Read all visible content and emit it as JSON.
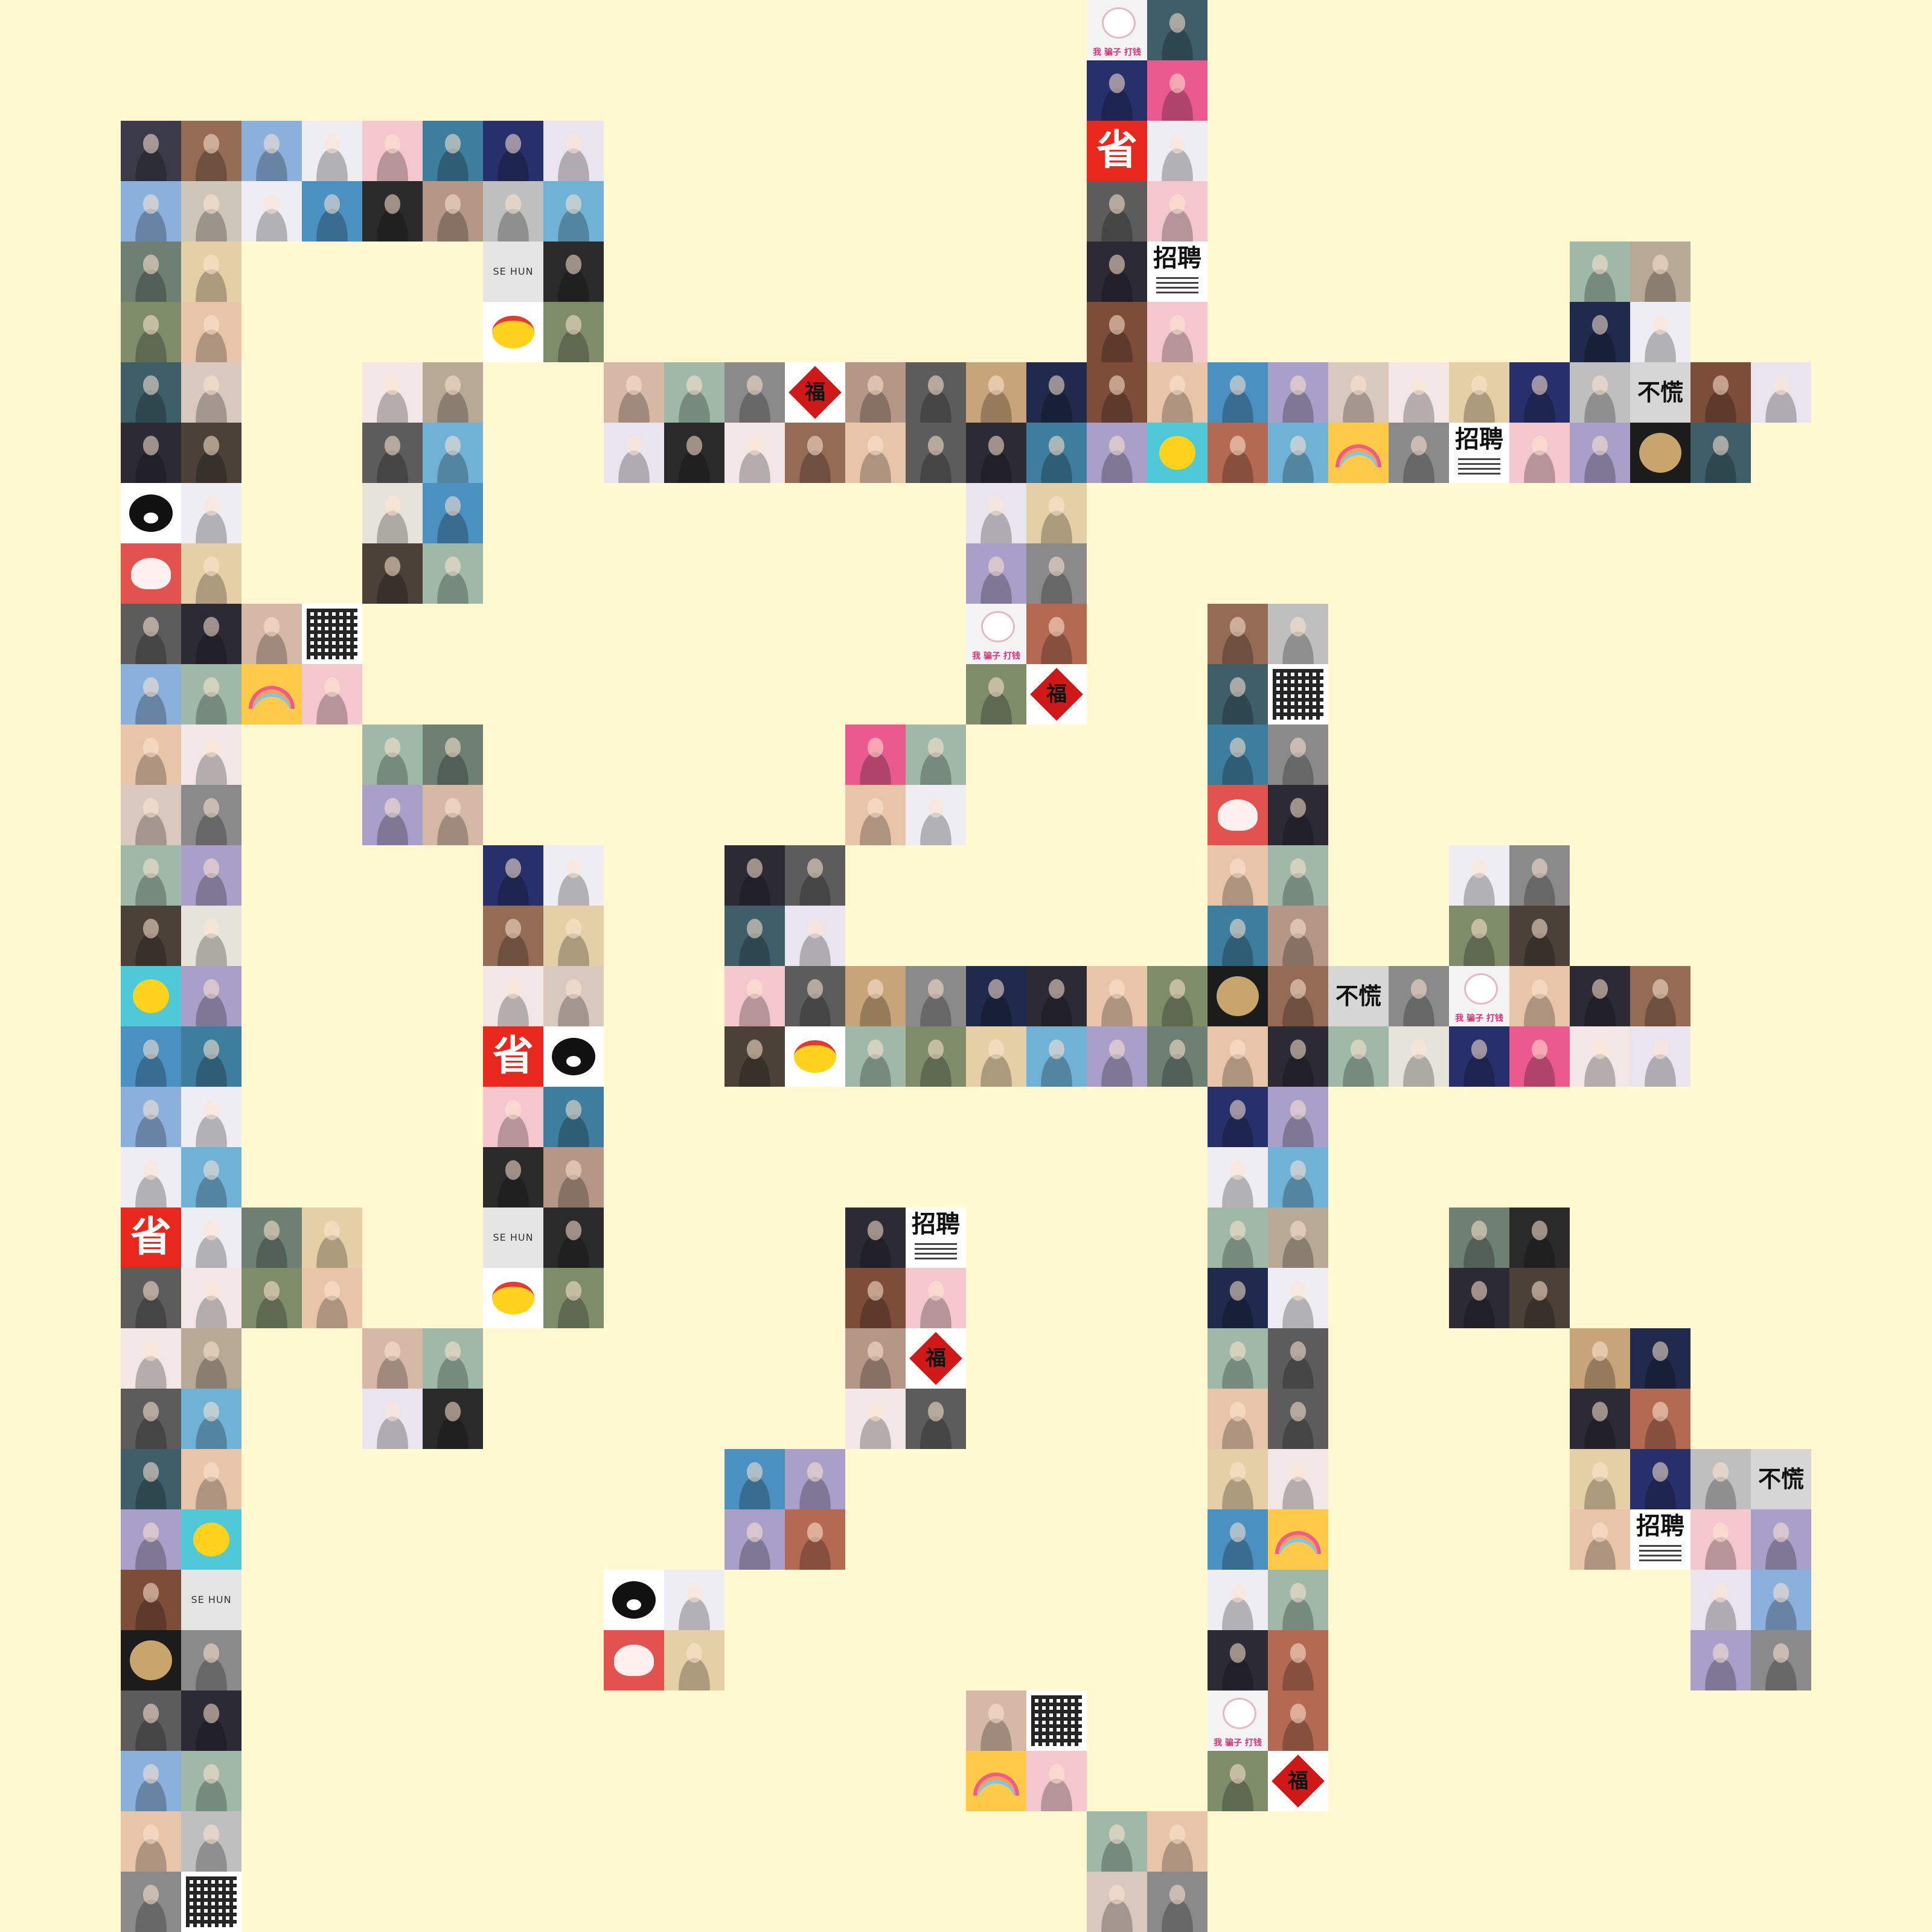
{
  "canvas": {
    "background": "#FFF8D0"
  },
  "palette": {
    "1": "#3A3A48",
    "2": "#A87A56",
    "3": "#8BB0DC",
    "4": "#BFBFBF",
    "5": "#F4C6CE",
    "6": "#3D7E9E",
    "7": "#27306A",
    "8": "#D8C8BE",
    "9": "#EDEDF3",
    "10": "#B8A896",
    "11": "#2A2A2A",
    "12": "#4A90C0",
    "13": "#5C5C5C",
    "14": "#6E7F74",
    "15": "#E4CFA6",
    "16": "#3E5F6A",
    "17": "#CFC6BA",
    "18": "#E9E4EE",
    "19": "#7C4E3A",
    "20": "#202A4C",
    "21": "#B49786",
    "22": "#8A8A8A",
    "23": "#E6E3DA",
    "24": "#2C2B35",
    "25": "#946B54",
    "26": "#9FB8A8",
    "27": "#F2E6E6",
    "28": "#C8A47A",
    "29": "#EB5A8E",
    "30": "#A8A0C8",
    "31": "#4B4138",
    "32": "#D6B8A6",
    "33": "#6FB2D6",
    "34": "#B46A52",
    "35": "#7E8C6A",
    "36": "#E8C4A8"
  },
  "special_tiles": {
    "sheng": {
      "text": "省",
      "color": "#E8281C"
    },
    "buliao": {
      "text": "不慌"
    },
    "zhaopin": {
      "text": "招聘"
    },
    "sehun": {
      "text": "SE  HUN"
    },
    "fu": {
      "text": "福"
    },
    "pianzi": {
      "text": "我 骗子 打钱"
    },
    "qr": {
      "icon": "qr-code-icon"
    },
    "rainbow": {
      "icon": "rainbow-icon"
    },
    "kuma": {
      "icon": "kumamon-icon"
    },
    "duck": {
      "icon": "duck-icon"
    },
    "mochi": {
      "icon": "mochi-icon"
    },
    "pug": {
      "icon": "pug-icon"
    },
    "blob": {
      "icon": "yellow-blob-icon"
    }
  },
  "mosaic": {
    "columns": 32,
    "rows": 32,
    "tiles": [
      [
        0,
        18,
        "pianzi"
      ],
      [
        0,
        19,
        "16"
      ],
      [
        1,
        18,
        "7"
      ],
      [
        1,
        19,
        "29"
      ],
      [
        2,
        2,
        "1"
      ],
      [
        2,
        3,
        "25"
      ],
      [
        2,
        4,
        "3"
      ],
      [
        2,
        5,
        "9"
      ],
      [
        2,
        6,
        "5"
      ],
      [
        2,
        7,
        "6"
      ],
      [
        2,
        8,
        "7"
      ],
      [
        2,
        9,
        "18"
      ],
      [
        2,
        18,
        "sheng"
      ],
      [
        2,
        19,
        "9"
      ],
      [
        3,
        2,
        "3"
      ],
      [
        3,
        3,
        "17"
      ],
      [
        3,
        4,
        "9"
      ],
      [
        3,
        5,
        "12"
      ],
      [
        3,
        6,
        "11"
      ],
      [
        3,
        7,
        "21"
      ],
      [
        3,
        8,
        "4"
      ],
      [
        3,
        9,
        "33"
      ],
      [
        3,
        18,
        "13"
      ],
      [
        3,
        19,
        "5"
      ],
      [
        4,
        2,
        "14"
      ],
      [
        4,
        3,
        "15"
      ],
      [
        4,
        8,
        "sehun"
      ],
      [
        4,
        9,
        "11"
      ],
      [
        4,
        18,
        "24"
      ],
      [
        4,
        19,
        "zhaopin"
      ],
      [
        4,
        26,
        "26"
      ],
      [
        4,
        27,
        "10"
      ],
      [
        5,
        2,
        "35"
      ],
      [
        5,
        3,
        "36"
      ],
      [
        5,
        8,
        "blob"
      ],
      [
        5,
        9,
        "35"
      ],
      [
        5,
        18,
        "19"
      ],
      [
        5,
        19,
        "5"
      ],
      [
        5,
        26,
        "20"
      ],
      [
        5,
        27,
        "9"
      ],
      [
        6,
        2,
        "16"
      ],
      [
        6,
        3,
        "8"
      ],
      [
        6,
        6,
        "27"
      ],
      [
        6,
        7,
        "10"
      ],
      [
        6,
        10,
        "32"
      ],
      [
        6,
        11,
        "26"
      ],
      [
        6,
        12,
        "22"
      ],
      [
        6,
        13,
        "fu"
      ],
      [
        6,
        14,
        "21"
      ],
      [
        6,
        15,
        "13"
      ],
      [
        6,
        16,
        "28"
      ],
      [
        6,
        17,
        "20"
      ],
      [
        6,
        18,
        "19"
      ],
      [
        6,
        19,
        "36"
      ],
      [
        6,
        20,
        "12"
      ],
      [
        6,
        21,
        "30"
      ],
      [
        6,
        22,
        "8"
      ],
      [
        6,
        23,
        "27"
      ],
      [
        6,
        24,
        "15"
      ],
      [
        6,
        25,
        "7"
      ],
      [
        6,
        26,
        "4"
      ],
      [
        6,
        27,
        "buliao"
      ],
      [
        6,
        28,
        "19"
      ],
      [
        6,
        29,
        "18"
      ],
      [
        7,
        2,
        "24"
      ],
      [
        7,
        3,
        "31"
      ],
      [
        7,
        6,
        "13"
      ],
      [
        7,
        7,
        "33"
      ],
      [
        7,
        10,
        "18"
      ],
      [
        7,
        11,
        "11"
      ],
      [
        7,
        12,
        "27"
      ],
      [
        7,
        13,
        "25"
      ],
      [
        7,
        14,
        "36"
      ],
      [
        7,
        15,
        "13"
      ],
      [
        7,
        16,
        "24"
      ],
      [
        7,
        17,
        "6"
      ],
      [
        7,
        18,
        "30"
      ],
      [
        7,
        19,
        "duck"
      ],
      [
        7,
        20,
        "34"
      ],
      [
        7,
        21,
        "33"
      ],
      [
        7,
        22,
        "rainbow"
      ],
      [
        7,
        23,
        "22"
      ],
      [
        7,
        24,
        "zhaopin"
      ],
      [
        7,
        25,
        "5"
      ],
      [
        7,
        26,
        "30"
      ],
      [
        7,
        27,
        "pug"
      ],
      [
        7,
        28,
        "16"
      ],
      [
        8,
        2,
        "kuma"
      ],
      [
        8,
        3,
        "9"
      ],
      [
        8,
        6,
        "23"
      ],
      [
        8,
        7,
        "12"
      ],
      [
        8,
        16,
        "18"
      ],
      [
        8,
        17,
        "15"
      ],
      [
        9,
        2,
        "mochi"
      ],
      [
        9,
        3,
        "15"
      ],
      [
        9,
        6,
        "31"
      ],
      [
        9,
        7,
        "26"
      ],
      [
        9,
        16,
        "30"
      ],
      [
        9,
        17,
        "22"
      ],
      [
        10,
        2,
        "13"
      ],
      [
        10,
        3,
        "24"
      ],
      [
        10,
        4,
        "32"
      ],
      [
        10,
        5,
        "qr"
      ],
      [
        10,
        16,
        "pianzi"
      ],
      [
        10,
        17,
        "34"
      ],
      [
        10,
        20,
        "25"
      ],
      [
        10,
        21,
        "4"
      ],
      [
        11,
        2,
        "3"
      ],
      [
        11,
        3,
        "26"
      ],
      [
        11,
        4,
        "rainbow"
      ],
      [
        11,
        5,
        "5"
      ],
      [
        11,
        16,
        "35"
      ],
      [
        11,
        17,
        "fu"
      ],
      [
        11,
        20,
        "16"
      ],
      [
        11,
        21,
        "qr"
      ],
      [
        12,
        2,
        "36"
      ],
      [
        12,
        3,
        "27"
      ],
      [
        12,
        6,
        "26"
      ],
      [
        12,
        7,
        "14"
      ],
      [
        12,
        14,
        "29"
      ],
      [
        12,
        15,
        "26"
      ],
      [
        12,
        20,
        "6"
      ],
      [
        12,
        21,
        "22"
      ],
      [
        13,
        2,
        "8"
      ],
      [
        13,
        3,
        "22"
      ],
      [
        13,
        6,
        "30"
      ],
      [
        13,
        7,
        "32"
      ],
      [
        13,
        14,
        "36"
      ],
      [
        13,
        15,
        "9"
      ],
      [
        13,
        20,
        "mochi"
      ],
      [
        13,
        21,
        "24"
      ],
      [
        14,
        2,
        "26"
      ],
      [
        14,
        3,
        "30"
      ],
      [
        14,
        8,
        "7"
      ],
      [
        14,
        9,
        "9"
      ],
      [
        14,
        12,
        "24"
      ],
      [
        14,
        13,
        "13"
      ],
      [
        14,
        20,
        "36"
      ],
      [
        14,
        21,
        "26"
      ],
      [
        14,
        24,
        "9"
      ],
      [
        14,
        25,
        "22"
      ],
      [
        15,
        2,
        "31"
      ],
      [
        15,
        3,
        "23"
      ],
      [
        15,
        8,
        "25"
      ],
      [
        15,
        9,
        "15"
      ],
      [
        15,
        12,
        "16"
      ],
      [
        15,
        13,
        "18"
      ],
      [
        15,
        20,
        "6"
      ],
      [
        15,
        21,
        "21"
      ],
      [
        15,
        24,
        "35"
      ],
      [
        15,
        25,
        "31"
      ],
      [
        16,
        2,
        "duck"
      ],
      [
        16,
        3,
        "30"
      ],
      [
        16,
        8,
        "27"
      ],
      [
        16,
        9,
        "8"
      ],
      [
        16,
        12,
        "5"
      ],
      [
        16,
        13,
        "13"
      ],
      [
        16,
        14,
        "28"
      ],
      [
        16,
        15,
        "22"
      ],
      [
        16,
        16,
        "20"
      ],
      [
        16,
        17,
        "24"
      ],
      [
        16,
        18,
        "36"
      ],
      [
        16,
        19,
        "35"
      ],
      [
        16,
        20,
        "pug"
      ],
      [
        16,
        21,
        "25"
      ],
      [
        16,
        22,
        "buliao"
      ],
      [
        16,
        23,
        "22"
      ],
      [
        16,
        24,
        "pianzi"
      ],
      [
        16,
        25,
        "36"
      ],
      [
        16,
        26,
        "24"
      ],
      [
        16,
        27,
        "25"
      ],
      [
        17,
        2,
        "12"
      ],
      [
        17,
        3,
        "6"
      ],
      [
        17,
        8,
        "sheng"
      ],
      [
        17,
        9,
        "kuma"
      ],
      [
        17,
        12,
        "31"
      ],
      [
        17,
        13,
        "blob"
      ],
      [
        17,
        14,
        "26"
      ],
      [
        17,
        15,
        "35"
      ],
      [
        17,
        16,
        "15"
      ],
      [
        17,
        17,
        "33"
      ],
      [
        17,
        18,
        "30"
      ],
      [
        17,
        19,
        "14"
      ],
      [
        17,
        20,
        "36"
      ],
      [
        17,
        21,
        "24"
      ],
      [
        17,
        22,
        "26"
      ],
      [
        17,
        23,
        "23"
      ],
      [
        17,
        24,
        "7"
      ],
      [
        17,
        25,
        "29"
      ],
      [
        17,
        26,
        "27"
      ],
      [
        17,
        27,
        "18"
      ],
      [
        18,
        2,
        "3"
      ],
      [
        18,
        3,
        "9"
      ],
      [
        18,
        8,
        "5"
      ],
      [
        18,
        9,
        "6"
      ],
      [
        18,
        20,
        "7"
      ],
      [
        18,
        21,
        "30"
      ],
      [
        19,
        2,
        "9"
      ],
      [
        19,
        3,
        "33"
      ],
      [
        19,
        8,
        "11"
      ],
      [
        19,
        9,
        "21"
      ],
      [
        19,
        20,
        "9"
      ],
      [
        19,
        21,
        "33"
      ],
      [
        20,
        2,
        "sheng"
      ],
      [
        20,
        3,
        "9"
      ],
      [
        20,
        4,
        "14"
      ],
      [
        20,
        5,
        "15"
      ],
      [
        20,
        8,
        "sehun"
      ],
      [
        20,
        9,
        "11"
      ],
      [
        20,
        14,
        "24"
      ],
      [
        20,
        15,
        "zhaopin"
      ],
      [
        20,
        20,
        "26"
      ],
      [
        20,
        21,
        "10"
      ],
      [
        20,
        24,
        "14"
      ],
      [
        20,
        25,
        "11"
      ],
      [
        21,
        2,
        "13"
      ],
      [
        21,
        3,
        "27"
      ],
      [
        21,
        4,
        "35"
      ],
      [
        21,
        5,
        "36"
      ],
      [
        21,
        8,
        "blob"
      ],
      [
        21,
        9,
        "35"
      ],
      [
        21,
        14,
        "19"
      ],
      [
        21,
        15,
        "5"
      ],
      [
        21,
        20,
        "20"
      ],
      [
        21,
        21,
        "9"
      ],
      [
        21,
        24,
        "24"
      ],
      [
        21,
        25,
        "31"
      ],
      [
        22,
        2,
        "27"
      ],
      [
        22,
        3,
        "10"
      ],
      [
        22,
        6,
        "32"
      ],
      [
        22,
        7,
        "26"
      ],
      [
        22,
        14,
        "21"
      ],
      [
        22,
        15,
        "fu"
      ],
      [
        22,
        20,
        "26"
      ],
      [
        22,
        21,
        "13"
      ],
      [
        22,
        26,
        "28"
      ],
      [
        22,
        27,
        "20"
      ],
      [
        23,
        2,
        "13"
      ],
      [
        23,
        3,
        "33"
      ],
      [
        23,
        6,
        "18"
      ],
      [
        23,
        7,
        "11"
      ],
      [
        23,
        14,
        "27"
      ],
      [
        23,
        15,
        "13"
      ],
      [
        23,
        20,
        "36"
      ],
      [
        23,
        21,
        "13"
      ],
      [
        23,
        26,
        "24"
      ],
      [
        23,
        27,
        "34"
      ],
      [
        24,
        2,
        "16"
      ],
      [
        24,
        3,
        "36"
      ],
      [
        24,
        12,
        "12"
      ],
      [
        24,
        13,
        "30"
      ],
      [
        24,
        20,
        "15"
      ],
      [
        24,
        21,
        "27"
      ],
      [
        24,
        26,
        "15"
      ],
      [
        24,
        27,
        "7"
      ],
      [
        24,
        28,
        "4"
      ],
      [
        24,
        29,
        "buliao"
      ],
      [
        25,
        2,
        "30"
      ],
      [
        25,
        3,
        "duck"
      ],
      [
        25,
        12,
        "30"
      ],
      [
        25,
        13,
        "34"
      ],
      [
        25,
        20,
        "12"
      ],
      [
        25,
        21,
        "rainbow"
      ],
      [
        25,
        26,
        "36"
      ],
      [
        25,
        27,
        "zhaopin"
      ],
      [
        25,
        28,
        "5"
      ],
      [
        25,
        29,
        "30"
      ],
      [
        26,
        2,
        "19"
      ],
      [
        26,
        3,
        "sehun"
      ],
      [
        26,
        10,
        "kuma"
      ],
      [
        26,
        11,
        "9"
      ],
      [
        26,
        20,
        "9"
      ],
      [
        26,
        21,
        "26"
      ],
      [
        26,
        28,
        "18"
      ],
      [
        26,
        29,
        "3"
      ],
      [
        27,
        2,
        "pug"
      ],
      [
        27,
        3,
        "22"
      ],
      [
        27,
        10,
        "mochi"
      ],
      [
        27,
        11,
        "15"
      ],
      [
        27,
        20,
        "24"
      ],
      [
        27,
        21,
        "34"
      ],
      [
        27,
        28,
        "30"
      ],
      [
        27,
        29,
        "22"
      ],
      [
        28,
        2,
        "13"
      ],
      [
        28,
        3,
        "24"
      ],
      [
        28,
        16,
        "32"
      ],
      [
        28,
        17,
        "qr"
      ],
      [
        28,
        20,
        "pianzi"
      ],
      [
        28,
        21,
        "34"
      ],
      [
        29,
        2,
        "3"
      ],
      [
        29,
        3,
        "26"
      ],
      [
        29,
        16,
        "rainbow"
      ],
      [
        29,
        17,
        "5"
      ],
      [
        29,
        20,
        "35"
      ],
      [
        29,
        21,
        "fu"
      ],
      [
        30,
        2,
        "36"
      ],
      [
        30,
        3,
        "4"
      ],
      [
        30,
        18,
        "26"
      ],
      [
        30,
        19,
        "36"
      ],
      [
        31,
        2,
        "22"
      ],
      [
        31,
        3,
        "qr"
      ],
      [
        31,
        18,
        "8"
      ],
      [
        31,
        19,
        "22"
      ]
    ]
  }
}
